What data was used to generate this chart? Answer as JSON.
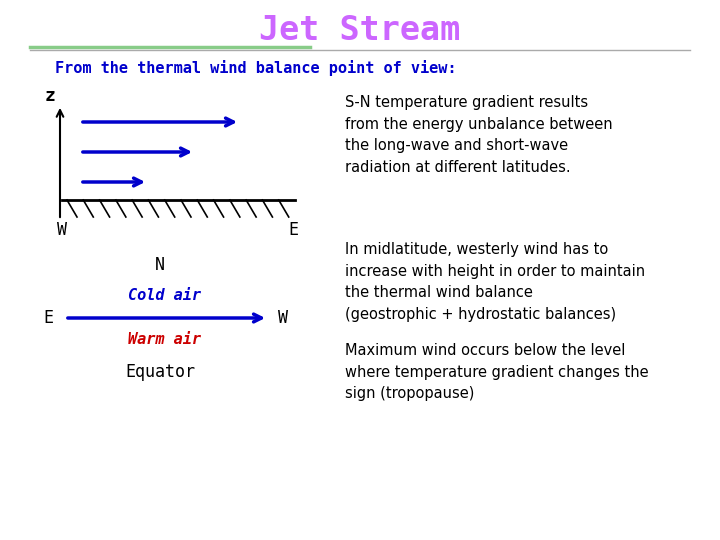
{
  "title": "Jet Stream",
  "title_color": "#cc66ff",
  "title_fontsize": 24,
  "subtitle": "From the thermal wind balance point of view:",
  "subtitle_color": "#0000cc",
  "subtitle_fontsize": 11,
  "line_color_green": "#88cc88",
  "line_color_gray": "#aaaaaa",
  "arrow_color": "#0000cc",
  "text1": "S-N temperature gradient results\nfrom the energy unbalance between\nthe long-wave and short-wave\nradiation at different latitudes.",
  "text2": "In midlatitude, westerly wind has to\nincrease with height in order to maintain\nthe thermal wind balance\n(geostrophic + hydrostatic balances)",
  "text3": "Maximum wind occurs below the level\nwhere temperature gradient changes the\nsign (tropopause)",
  "label_z": "z",
  "label_W_top": "W",
  "label_E_top": "E",
  "label_N": "N",
  "label_cold": "Cold air",
  "label_warm": "Warm air",
  "label_E_bottom": "E",
  "label_W_bottom": "W",
  "label_equator": "Equator",
  "cold_color": "#0000cc",
  "warm_color": "#cc0000",
  "black_color": "#000000",
  "mono_font": "monospace",
  "body_font": "DejaVu Sans",
  "text_fontsize": 10.5,
  "label_fontsize": 11
}
